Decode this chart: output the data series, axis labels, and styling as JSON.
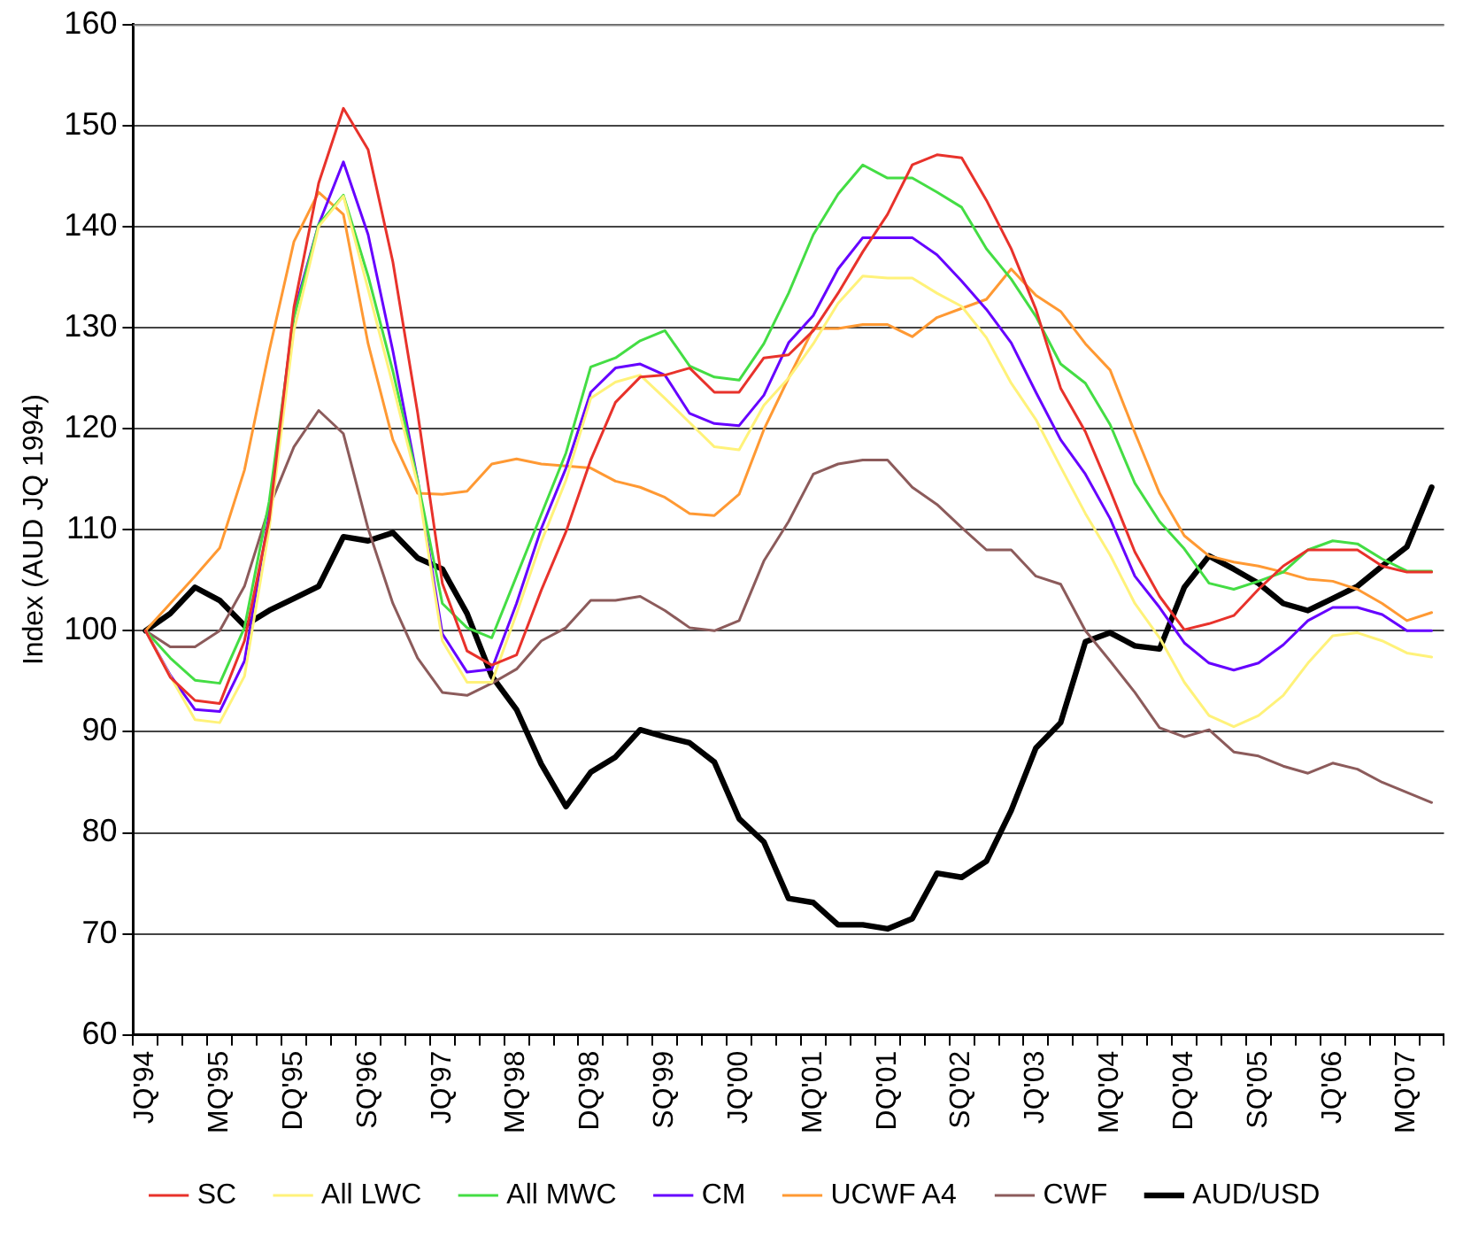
{
  "chart_data": {
    "type": "line",
    "ylabel": "Index (AUD JQ 1994)",
    "ylim": [
      60,
      160
    ],
    "yticks": [
      60,
      70,
      80,
      90,
      100,
      110,
      120,
      130,
      140,
      150,
      160
    ],
    "grid": "y",
    "legend": "bottom",
    "marker": "none",
    "line_style": "solid",
    "categories": [
      "JQ'94",
      null,
      null,
      "MQ'95",
      null,
      null,
      "DQ'95",
      null,
      null,
      "SQ'96",
      null,
      null,
      "JQ'97",
      null,
      null,
      "MQ'98",
      null,
      null,
      "DQ'98",
      null,
      null,
      "SQ'99",
      null,
      null,
      "JQ'00",
      null,
      null,
      "MQ'01",
      null,
      null,
      "DQ'01",
      null,
      null,
      "SQ'02",
      null,
      null,
      "JQ'03",
      null,
      null,
      "MQ'04",
      null,
      null,
      "DQ'04",
      null,
      null,
      "SQ'05",
      null,
      null,
      "JQ'06",
      null,
      null,
      "MQ'07",
      null
    ],
    "series": [
      {
        "name": "SC",
        "color": "#e8322b",
        "values": [
          100,
          95.4,
          93.1,
          92.8,
          99,
          111,
          132,
          144.3,
          151.7,
          147.6,
          136.5,
          121.6,
          104.7,
          98,
          96.6,
          97.6,
          104,
          109.8,
          116.9,
          122.6,
          125.1,
          125.3,
          126,
          123.6,
          123.6,
          127,
          127.3,
          129.7,
          133.4,
          137.5,
          141.2,
          146.1,
          147.1,
          146.8,
          142.6,
          137.8,
          131.8,
          124,
          119.7,
          113.9,
          107.8,
          103.4,
          100.1,
          100.7,
          101.5,
          104.1,
          106.4,
          108,
          108,
          108,
          106.4,
          105.8,
          105.8
        ]
      },
      {
        "name": "All LWC",
        "color": "#fff27a",
        "values": [
          100,
          95.5,
          91.2,
          90.9,
          95.5,
          110.1,
          129.7,
          140,
          143,
          133.8,
          124.3,
          114.5,
          99,
          94.9,
          94.9,
          101.7,
          108.8,
          114.9,
          123,
          124.6,
          125.3,
          123,
          120.6,
          118.2,
          117.9,
          122.3,
          125,
          128.4,
          132.4,
          135.1,
          134.9,
          134.9,
          133.4,
          132.1,
          129,
          124.5,
          120.9,
          116.2,
          111.6,
          107.5,
          102.7,
          99.3,
          94.9,
          91.6,
          90.5,
          91.6,
          93.6,
          96.8,
          99.5,
          99.8,
          99,
          97.8,
          97.4
        ]
      },
      {
        "name": "All MWC",
        "color": "#44dd44",
        "values": [
          100,
          97.3,
          95.1,
          94.8,
          100.3,
          112.8,
          131,
          140.2,
          143.1,
          135.1,
          125.7,
          114.9,
          102.7,
          100.3,
          99.3,
          105.4,
          111.5,
          117.6,
          126.1,
          127,
          128.7,
          129.7,
          126.2,
          125.1,
          124.8,
          128.4,
          133.4,
          139.2,
          143.2,
          146.1,
          144.8,
          144.8,
          143.4,
          141.9,
          137.8,
          134.8,
          131.1,
          126.4,
          124.5,
          120.4,
          114.6,
          110.8,
          108.1,
          104.7,
          104.1,
          104.9,
          105.8,
          108,
          108.9,
          108.6,
          107.1,
          105.9,
          105.9
        ]
      },
      {
        "name": "CM",
        "color": "#6600ff",
        "values": [
          100,
          95.6,
          92.2,
          92,
          97,
          111.5,
          131.5,
          140.2,
          146.4,
          139.2,
          127.7,
          114.9,
          99.7,
          95.9,
          96.2,
          102.7,
          110.1,
          116.1,
          123.6,
          126,
          126.4,
          125.3,
          121.5,
          120.5,
          120.3,
          123.3,
          128.5,
          131.2,
          135.8,
          138.9,
          138.9,
          138.9,
          137.2,
          134.6,
          131.8,
          128.5,
          123.6,
          118.9,
          115.5,
          111.1,
          105.4,
          102.3,
          98.8,
          96.8,
          96.1,
          96.8,
          98.6,
          101,
          102.3,
          102.3,
          101.6,
          100,
          100
        ]
      },
      {
        "name": "UCWF A4",
        "color": "#ff9933",
        "values": [
          100,
          102.7,
          105.4,
          108.2,
          115.9,
          127.7,
          138.5,
          143.4,
          141.2,
          128.4,
          118.9,
          113.6,
          113.5,
          113.8,
          116.5,
          117,
          116.5,
          116.3,
          116.1,
          114.8,
          114.2,
          113.2,
          111.6,
          111.4,
          113.5,
          119.9,
          125,
          129.9,
          129.9,
          130.3,
          130.3,
          129.1,
          131,
          131.9,
          132.8,
          135.8,
          133.2,
          131.6,
          128.4,
          125.8,
          119.6,
          113.6,
          109.4,
          107.4,
          106.8,
          106.4,
          105.8,
          105.1,
          104.9,
          104.1,
          102.7,
          101,
          101.8
        ]
      },
      {
        "name": "CWF",
        "color": "#8c5b5b",
        "values": [
          100,
          98.4,
          98.4,
          100,
          104.4,
          112.2,
          118.2,
          121.8,
          119.5,
          110.1,
          102.7,
          97.3,
          93.9,
          93.6,
          94.8,
          96.2,
          99,
          100.3,
          103,
          103,
          103.4,
          102,
          100.3,
          100,
          101,
          106.9,
          110.8,
          115.5,
          116.5,
          116.9,
          116.9,
          114.2,
          112.5,
          110.2,
          108,
          108,
          105.4,
          104.6,
          100,
          97,
          93.9,
          90.4,
          89.5,
          90.2,
          88,
          87.6,
          86.6,
          85.9,
          86.9,
          86.3,
          85,
          84,
          83
        ]
      },
      {
        "name": "AUD/USD",
        "color": "#000000",
        "values": [
          100,
          101.7,
          104.3,
          103,
          100.5,
          102,
          103.2,
          104.4,
          109.3,
          108.9,
          109.7,
          107.2,
          106.1,
          101.7,
          95.5,
          92.2,
          86.8,
          82.6,
          86,
          87.5,
          90.2,
          89.5,
          88.9,
          87,
          81.4,
          79.1,
          73.5,
          73.1,
          70.9,
          70.9,
          70.5,
          71.5,
          76,
          75.6,
          77.2,
          82.2,
          88.4,
          90.9,
          98.9,
          99.8,
          98.5,
          98.2,
          104.3,
          107.4,
          106.1,
          104.7,
          102.7,
          102,
          103.2,
          104.4,
          106.4,
          108.3,
          114.2
        ]
      }
    ]
  }
}
